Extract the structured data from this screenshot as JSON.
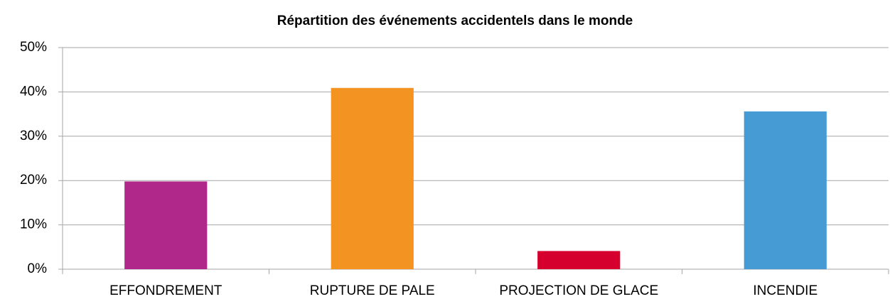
{
  "chart_data": {
    "type": "bar",
    "title": "Répartition des événements accidentels dans le monde",
    "categories": [
      "EFFONDREMENT",
      "RUPTURE DE PALE",
      "PROJECTION DE GLACE",
      "INCENDIE"
    ],
    "values": [
      19.8,
      40.9,
      4.1,
      35.6
    ],
    "colors": [
      "#b0298a",
      "#f39422",
      "#d6002f",
      "#479bd5"
    ],
    "ylim": [
      0,
      50
    ],
    "yticks": [
      {
        "value": 0,
        "label": "0%"
      },
      {
        "value": 10,
        "label": "10%"
      },
      {
        "value": 20,
        "label": "20%"
      },
      {
        "value": 30,
        "label": "30%"
      },
      {
        "value": 40,
        "label": "40%"
      },
      {
        "value": 50,
        "label": "50%"
      }
    ],
    "grid": true
  }
}
